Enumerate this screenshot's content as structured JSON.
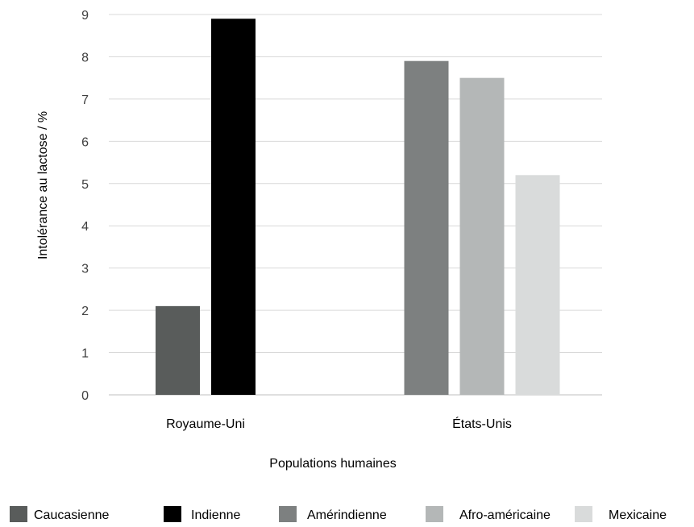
{
  "chart_data": {
    "type": "bar",
    "title": "",
    "xlabel": "Populations humaines",
    "ylabel": "Intolérance au lactose / %",
    "ylim": [
      0,
      9
    ],
    "yticks": [
      0,
      1,
      2,
      3,
      4,
      5,
      6,
      7,
      8,
      9
    ],
    "grid": true,
    "legend_position": "bottom",
    "categories": [
      "Royaume-Uni",
      "États-Unis"
    ],
    "series": [
      {
        "name": "Caucasienne",
        "color": "#595c5b",
        "values": [
          2.1,
          null
        ]
      },
      {
        "name": "Indienne",
        "color": "#000000",
        "values": [
          8.9,
          null
        ]
      },
      {
        "name": "Amérindienne",
        "color": "#7d8080",
        "values": [
          null,
          7.9
        ]
      },
      {
        "name": "Afro-américaine",
        "color": "#b4b7b7",
        "values": [
          null,
          7.5
        ]
      },
      {
        "name": "Mexicaine",
        "color": "#d9dbdb",
        "values": [
          null,
          5.2
        ]
      }
    ]
  }
}
